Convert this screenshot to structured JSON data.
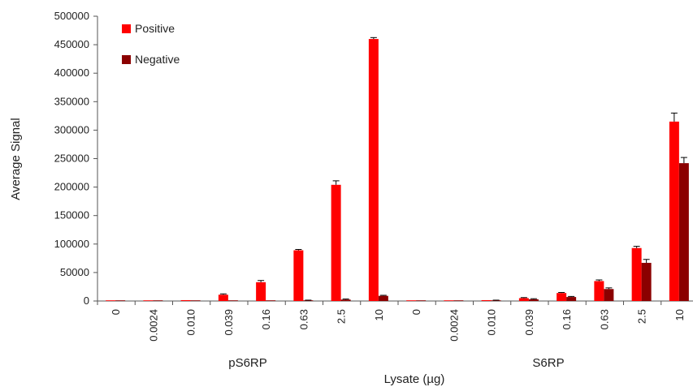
{
  "chart_data": {
    "type": "bar",
    "title": "",
    "ylabel": "Average Signal",
    "xlabel": "Lysate (µg)",
    "ylim": [
      0,
      500000
    ],
    "yticks": [
      0,
      50000,
      100000,
      150000,
      200000,
      250000,
      300000,
      350000,
      400000,
      450000,
      500000
    ],
    "grid": false,
    "legend_position": "top-left",
    "groups": [
      {
        "name": "pS6RP",
        "categories": [
          "0",
          "0.0024",
          "0.010",
          "0.039",
          "0.16",
          "0.63",
          "2.5",
          "10"
        ]
      },
      {
        "name": "S6RP",
        "categories": [
          "0",
          "0.0024",
          "0.010",
          "0.039",
          "0.16",
          "0.63",
          "2.5",
          "10"
        ]
      }
    ],
    "series": [
      {
        "name": "Positive",
        "color": "#ff0000",
        "values": [
          500,
          800,
          1500,
          11000,
          33000,
          89000,
          204000,
          460000,
          500,
          800,
          1500,
          5000,
          14000,
          35000,
          93000,
          315000
        ],
        "errors": [
          0,
          0,
          0,
          1500,
          3000,
          1500,
          7000,
          2500,
          0,
          0,
          0,
          1000,
          1000,
          2000,
          3000,
          15000
        ]
      },
      {
        "name": "Negative",
        "color": "#8b0000",
        "values": [
          300,
          300,
          300,
          300,
          500,
          1000,
          2500,
          9000,
          300,
          300,
          1000,
          3000,
          7000,
          21000,
          67000,
          242000
        ],
        "errors": [
          0,
          0,
          0,
          0,
          0,
          500,
          1000,
          1000,
          0,
          0,
          500,
          1000,
          1000,
          2000,
          6000,
          10000
        ]
      }
    ]
  }
}
